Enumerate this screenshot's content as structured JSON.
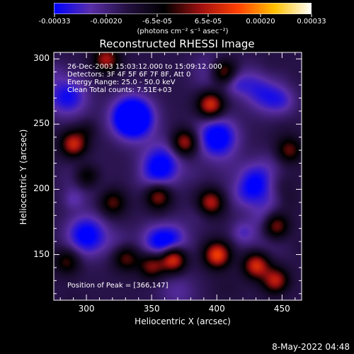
{
  "colorbar": {
    "ticks": [
      "-0.00033",
      "-0.00020",
      "-6.5e-05",
      "6.5e-05",
      "0.00020",
      "0.00033"
    ],
    "units": "(photons cm⁻² s⁻¹ asec⁻²)"
  },
  "title": "Reconstructed RHESSI Image",
  "annotations": {
    "time_range": "26-Dec-2003 15:03:12.000 to 15:09:12.000",
    "detectors": "Detectors: 3F 4F 5F 6F 7F 8F, Att 0",
    "energy": "Energy Range: 25.0 - 50.0 keV",
    "clean": "Clean    Total counts: 7.51E+03",
    "peak": "Position of Peak = [366,147]"
  },
  "footer": {
    "timestamp": "8-May-2022 04:48"
  },
  "chart_data": {
    "type": "heatmap",
    "title": "Reconstructed RHESSI Image",
    "xlabel": "Heliocentric X (arcsec)",
    "ylabel": "Heliocentric Y (arcsec)",
    "xlim": [
      275,
      465
    ],
    "ylim": [
      115,
      305
    ],
    "xticks": [
      300,
      350,
      400,
      450
    ],
    "yticks": [
      150,
      200,
      250,
      300
    ],
    "colorbar_range": [
      -0.00033,
      0.00033
    ],
    "colormap": [
      "#0000ff",
      "#5a2ea8",
      "#231040",
      "#000000",
      "#a01010",
      "#ff4000",
      "#ffc000",
      "#ffffff"
    ],
    "peak_position": [
      366,
      147
    ],
    "bright_regions": [
      {
        "x": 366,
        "y": 147,
        "value": 0.00033
      },
      {
        "x": 400,
        "y": 150,
        "value": 0.00028
      },
      {
        "x": 430,
        "y": 142,
        "value": 0.00025
      },
      {
        "x": 445,
        "y": 130,
        "value": 0.00024
      },
      {
        "x": 350,
        "y": 142,
        "value": 0.0002
      },
      {
        "x": 395,
        "y": 190,
        "value": 0.00022
      },
      {
        "x": 355,
        "y": 195,
        "value": 0.0002
      },
      {
        "x": 320,
        "y": 190,
        "value": 0.00015
      },
      {
        "x": 375,
        "y": 236,
        "value": 0.00023
      },
      {
        "x": 395,
        "y": 265,
        "value": 0.00026
      },
      {
        "x": 405,
        "y": 290,
        "value": 0.00022
      },
      {
        "x": 290,
        "y": 235,
        "value": 0.00024
      },
      {
        "x": 300,
        "y": 210,
        "value": 0.00018
      },
      {
        "x": 315,
        "y": 300,
        "value": 0.0002
      },
      {
        "x": 445,
        "y": 172,
        "value": 0.00019
      },
      {
        "x": 455,
        "y": 230,
        "value": 0.00016
      },
      {
        "x": 330,
        "y": 148,
        "value": 0.00017
      },
      {
        "x": 285,
        "y": 145,
        "value": 0.00014
      }
    ],
    "dark_regions": [
      {
        "x": 335,
        "y": 255,
        "value": -0.00033
      },
      {
        "x": 360,
        "y": 160,
        "value": -0.00025
      },
      {
        "x": 400,
        "y": 240,
        "value": -0.00022
      },
      {
        "x": 440,
        "y": 275,
        "value": -0.0002
      },
      {
        "x": 300,
        "y": 165,
        "value": -0.0002
      },
      {
        "x": 430,
        "y": 205,
        "value": -0.00018
      },
      {
        "x": 355,
        "y": 215,
        "value": -0.00018
      },
      {
        "x": 285,
        "y": 270,
        "value": -0.00018
      }
    ]
  }
}
